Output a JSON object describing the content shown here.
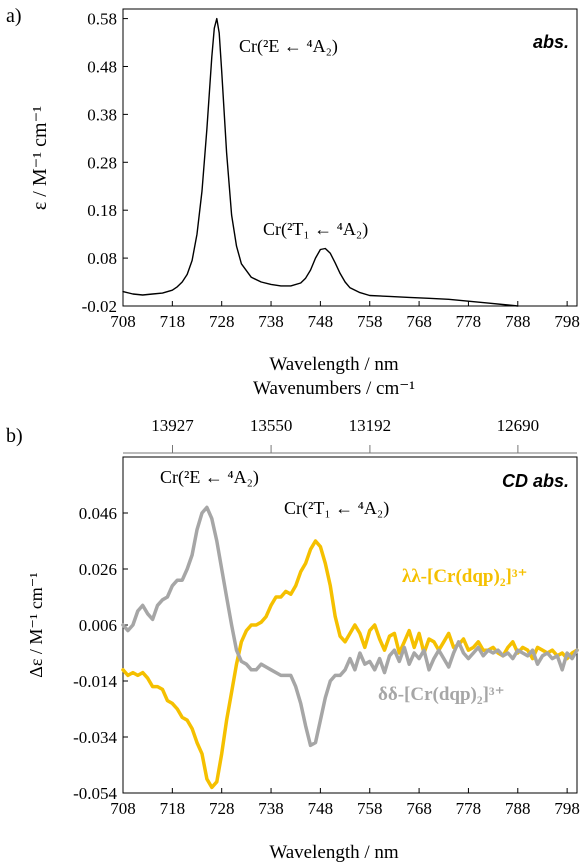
{
  "chart_data": [
    {
      "panel_label": "a)",
      "type": "line",
      "title": "",
      "xlabel": "Wavelength / nm",
      "ylabel": "ε / M⁻¹ cm⁻¹",
      "xlim": [
        708,
        800
      ],
      "ylim": [
        -0.02,
        0.6
      ],
      "x_ticks": [
        708,
        718,
        728,
        738,
        748,
        758,
        768,
        778,
        788,
        798
      ],
      "y_ticks": [
        -0.02,
        0.08,
        0.18,
        0.28,
        0.38,
        0.48,
        0.58
      ],
      "y_tick_labels": [
        "-0.02",
        "0.08",
        "0.18",
        "0.28",
        "0.38",
        "0.48",
        "0.58"
      ],
      "grid": false,
      "corner_label": "abs.",
      "annotations": [
        {
          "text": "Cr(²E ← ⁴A₂)",
          "x": 727,
          "y": 0.58
        },
        {
          "text": "Cr(²T₁ ← ⁴A₂)",
          "x": 749,
          "y": 0.1
        }
      ],
      "series": [
        {
          "color": "#000000",
          "x": [
            708,
            710,
            712,
            714,
            716,
            718,
            719,
            720,
            721,
            722,
            723,
            724,
            725,
            726,
            726.5,
            727,
            727.5,
            728,
            729,
            730,
            731,
            732,
            734,
            736,
            738,
            740,
            742,
            744,
            745,
            746,
            747,
            748,
            749,
            750,
            751,
            752,
            753,
            754,
            756,
            758,
            762,
            766,
            770,
            774,
            778,
            782,
            786,
            788
          ],
          "y": [
            0.01,
            0.005,
            0.003,
            0.005,
            0.007,
            0.013,
            0.02,
            0.03,
            0.046,
            0.075,
            0.13,
            0.22,
            0.35,
            0.5,
            0.56,
            0.58,
            0.55,
            0.47,
            0.3,
            0.17,
            0.105,
            0.068,
            0.04,
            0.03,
            0.025,
            0.022,
            0.022,
            0.028,
            0.038,
            0.055,
            0.08,
            0.098,
            0.1,
            0.09,
            0.07,
            0.048,
            0.03,
            0.018,
            0.008,
            0.002,
            0.0,
            -0.002,
            -0.004,
            -0.006,
            -0.01,
            -0.014,
            -0.018,
            -0.02
          ]
        }
      ]
    },
    {
      "panel_label": "b)",
      "type": "line",
      "title": "",
      "xlabel": "Wavelength / nm",
      "ylabel": "Δε / M⁻¹ cm⁻¹",
      "xlim": [
        708,
        800
      ],
      "ylim": [
        -0.054,
        0.066
      ],
      "x_ticks": [
        708,
        718,
        728,
        738,
        748,
        758,
        768,
        778,
        788,
        798
      ],
      "y_ticks": [
        -0.054,
        -0.034,
        -0.014,
        0.006,
        0.026,
        0.046
      ],
      "y_tick_labels": [
        "-0.054",
        "-0.034",
        "-0.014",
        "0.006",
        "0.026",
        "0.046"
      ],
      "secondary_axis": {
        "label": "Wavenumbers / cm⁻¹",
        "ticks": [
          13927,
          13550,
          13192,
          12690
        ]
      },
      "grid": false,
      "corner_label": "CD abs.",
      "annotations": [
        {
          "text": "Cr(²E ← ⁴A₂)",
          "x": 725,
          "y": 0.05
        },
        {
          "text": "Cr(²T₁ ← ⁴A₂)",
          "x": 748,
          "y": 0.037
        }
      ],
      "series": [
        {
          "name": "λλ-[Cr(dqp)₂]³⁺",
          "color": "#F5C000",
          "x": [
            708,
            709,
            710,
            711,
            712,
            713,
            714,
            715,
            716,
            717,
            718,
            719,
            720,
            721,
            722,
            723,
            724,
            725,
            726,
            727,
            728,
            729,
            730,
            731,
            732,
            733,
            734,
            735,
            736,
            737,
            738,
            739,
            740,
            741,
            742,
            743,
            744,
            745,
            746,
            747,
            748,
            749,
            750,
            751,
            752,
            753,
            754,
            755,
            756,
            757,
            758,
            759,
            760,
            761,
            762,
            763,
            764,
            765,
            766,
            767,
            768,
            769,
            770,
            771,
            772,
            773,
            774,
            775,
            776,
            777,
            778,
            779,
            780,
            781,
            782,
            783,
            784,
            785,
            786,
            787,
            788,
            789,
            790,
            791,
            792,
            793,
            794,
            795,
            796,
            797,
            798,
            799,
            800
          ],
          "y": [
            -0.01,
            -0.012,
            -0.011,
            -0.012,
            -0.011,
            -0.013,
            -0.016,
            -0.016,
            -0.017,
            -0.021,
            -0.022,
            -0.024,
            -0.027,
            -0.028,
            -0.031,
            -0.036,
            -0.04,
            -0.049,
            -0.052,
            -0.05,
            -0.04,
            -0.028,
            -0.018,
            -0.008,
            0.0,
            0.004,
            0.006,
            0.006,
            0.007,
            0.009,
            0.013,
            0.016,
            0.016,
            0.018,
            0.017,
            0.02,
            0.025,
            0.028,
            0.033,
            0.036,
            0.034,
            0.028,
            0.02,
            0.009,
            0.002,
            0.0,
            0.003,
            0.006,
            0.003,
            -0.002,
            0.004,
            0.006,
            0.001,
            -0.003,
            0.002,
            0.003,
            -0.004,
            0.0,
            0.004,
            -0.002,
            0.003,
            -0.004,
            0.001,
            0.0,
            -0.003,
            0.0,
            0.003,
            -0.002,
            -0.001,
            0.001,
            -0.003,
            -0.002,
            0.0,
            -0.003,
            -0.003,
            -0.002,
            -0.004,
            -0.005,
            -0.002,
            0.0,
            -0.004,
            -0.002,
            -0.003,
            -0.006,
            -0.002,
            -0.003,
            -0.004,
            -0.003,
            -0.005,
            -0.004,
            -0.006,
            -0.004,
            -0.003
          ]
        },
        {
          "name": "δδ-[Cr(dqp)₂]³⁺",
          "color": "#A6A6A6",
          "x": [
            708,
            709,
            710,
            711,
            712,
            713,
            714,
            715,
            716,
            717,
            718,
            719,
            720,
            721,
            722,
            723,
            724,
            725,
            726,
            727,
            728,
            729,
            730,
            731,
            732,
            733,
            734,
            735,
            736,
            737,
            738,
            739,
            740,
            741,
            742,
            743,
            744,
            745,
            746,
            747,
            748,
            749,
            750,
            751,
            752,
            753,
            754,
            755,
            756,
            757,
            758,
            759,
            760,
            761,
            762,
            763,
            764,
            765,
            766,
            767,
            768,
            769,
            770,
            771,
            772,
            773,
            774,
            775,
            776,
            777,
            778,
            779,
            780,
            781,
            782,
            783,
            784,
            785,
            786,
            787,
            788,
            789,
            790,
            791,
            792,
            793,
            794,
            795,
            796,
            797,
            798,
            799,
            800
          ],
          "y": [
            0.006,
            0.004,
            0.006,
            0.011,
            0.013,
            0.01,
            0.008,
            0.013,
            0.015,
            0.016,
            0.02,
            0.022,
            0.022,
            0.026,
            0.031,
            0.04,
            0.046,
            0.048,
            0.044,
            0.036,
            0.026,
            0.016,
            0.006,
            -0.003,
            -0.007,
            -0.008,
            -0.01,
            -0.01,
            -0.008,
            -0.009,
            -0.01,
            -0.011,
            -0.012,
            -0.012,
            -0.012,
            -0.016,
            -0.022,
            -0.03,
            -0.037,
            -0.036,
            -0.028,
            -0.02,
            -0.014,
            -0.012,
            -0.012,
            -0.01,
            -0.006,
            -0.01,
            -0.004,
            -0.008,
            -0.007,
            -0.01,
            -0.006,
            -0.011,
            -0.005,
            -0.003,
            -0.007,
            -0.002,
            -0.008,
            -0.004,
            -0.006,
            -0.003,
            -0.01,
            -0.006,
            -0.003,
            -0.006,
            -0.009,
            -0.004,
            0.0,
            -0.004,
            -0.006,
            -0.004,
            -0.002,
            -0.005,
            -0.003,
            -0.004,
            -0.003,
            -0.005,
            -0.004,
            -0.006,
            -0.003,
            -0.004,
            -0.005,
            -0.003,
            -0.008,
            -0.005,
            -0.004,
            -0.006,
            -0.005,
            -0.01,
            -0.004,
            -0.006,
            -0.003
          ]
        }
      ]
    }
  ]
}
